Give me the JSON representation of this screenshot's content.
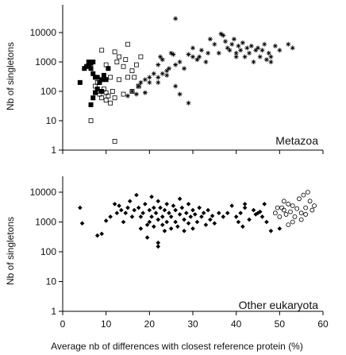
{
  "chart_data": [
    {
      "type": "scatter",
      "panel": "top",
      "annotation": "Metazoa",
      "ylabel": "Nb of singletons",
      "xlabel": "",
      "xlim": [
        0,
        60
      ],
      "ylim": [
        1,
        40000
      ],
      "yscale": "log",
      "yticks": [
        "10000",
        "1000",
        "100",
        "10",
        "1"
      ],
      "legend": "none",
      "grid": false,
      "series": [
        {
          "marker": "filled-square",
          "points": [
            [
              4,
              200
            ],
            [
              5,
              600
            ],
            [
              5.5,
              700
            ],
            [
              6,
              800
            ],
            [
              6,
              1000
            ],
            [
              6.5,
              900
            ],
            [
              7,
              1000
            ],
            [
              6.5,
              600
            ],
            [
              7,
              400
            ],
            [
              7.5,
              300
            ],
            [
              8,
              300
            ],
            [
              6.5,
              35
            ],
            [
              7,
              60
            ],
            [
              8.5,
              200
            ],
            [
              9,
              250
            ],
            [
              9.5,
              350
            ],
            [
              10,
              250
            ],
            [
              8,
              120
            ],
            [
              7.5,
              90
            ],
            [
              9,
              100
            ],
            [
              10.5,
              600
            ]
          ]
        },
        {
          "marker": "open-square",
          "points": [
            [
              6.5,
              10
            ],
            [
              7.5,
              150
            ],
            [
              8,
              200
            ],
            [
              8,
              100
            ],
            [
              8.5,
              80
            ],
            [
              9,
              60
            ],
            [
              9.5,
              120
            ],
            [
              10,
              90
            ],
            [
              10,
              50
            ],
            [
              10.5,
              70
            ],
            [
              11,
              40
            ],
            [
              11.5,
              100
            ],
            [
              12,
              60
            ],
            [
              12,
              2
            ],
            [
              9,
              2500
            ],
            [
              12,
              2200
            ],
            [
              13,
              1500
            ],
            [
              12.5,
              1000
            ],
            [
              14,
              700
            ],
            [
              14.5,
              1200
            ],
            [
              15,
              300
            ],
            [
              15,
              4000
            ],
            [
              16,
              500
            ],
            [
              16.5,
              300
            ],
            [
              17,
              800
            ],
            [
              18,
              1500
            ],
            [
              16,
              100
            ],
            [
              14,
              80
            ],
            [
              13,
              250
            ],
            [
              11,
              300
            ],
            [
              17.5,
              150
            ],
            [
              10,
              800
            ]
          ]
        },
        {
          "marker": "asterisk",
          "points": [
            [
              15,
              70
            ],
            [
              16,
              100
            ],
            [
              17,
              80
            ],
            [
              17.5,
              150
            ],
            [
              18,
              200
            ],
            [
              19,
              250
            ],
            [
              19,
              90
            ],
            [
              20,
              300
            ],
            [
              20,
              200
            ],
            [
              21,
              400
            ],
            [
              22,
              800
            ],
            [
              22,
              300
            ],
            [
              23,
              400
            ],
            [
              24,
              350
            ],
            [
              24.5,
              600
            ],
            [
              22.5,
              1500
            ],
            [
              23,
              1200
            ],
            [
              25,
              2000
            ],
            [
              25.5,
              1800
            ],
            [
              26,
              800
            ],
            [
              27,
              1000
            ],
            [
              28,
              600
            ],
            [
              29,
              1800
            ],
            [
              30,
              1500
            ],
            [
              31,
              1200
            ],
            [
              31.5,
              1500
            ],
            [
              29,
              40
            ],
            [
              26,
              30000
            ],
            [
              27,
              80
            ],
            [
              26,
              150
            ],
            [
              30,
              3000
            ],
            [
              32,
              2500
            ],
            [
              33,
              1000
            ],
            [
              33.5,
              2000
            ],
            [
              34,
              6000
            ],
            [
              35,
              4000
            ],
            [
              36,
              2000
            ],
            [
              36.5,
              9000
            ],
            [
              37,
              8000
            ],
            [
              37.5,
              5000
            ],
            [
              38,
              3000
            ],
            [
              38.5,
              2500
            ],
            [
              39,
              4000
            ],
            [
              39.5,
              6000
            ],
            [
              40,
              2000
            ],
            [
              40,
              1500
            ],
            [
              40.5,
              3500
            ],
            [
              41,
              2500
            ],
            [
              41.5,
              4500
            ],
            [
              42,
              1500
            ],
            [
              42.5,
              3000
            ],
            [
              43,
              2000
            ],
            [
              43.5,
              3500
            ],
            [
              44,
              1000
            ],
            [
              44.5,
              2500
            ],
            [
              45,
              3000
            ],
            [
              45.5,
              1500
            ],
            [
              46,
              2500
            ],
            [
              46.5,
              4000
            ],
            [
              47,
              1200
            ],
            [
              47.5,
              2000
            ],
            [
              48,
              1500
            ],
            [
              49,
              3500
            ],
            [
              50,
              2500
            ],
            [
              48,
              1000
            ],
            [
              52,
              4000
            ],
            [
              53,
              3000
            ],
            [
              22,
              200
            ],
            [
              24,
              500
            ]
          ]
        }
      ]
    },
    {
      "type": "scatter",
      "panel": "bottom",
      "annotation": "Other eukaryota",
      "ylabel": "Nb of singletons",
      "xlabel": "Average nb of differences with closest reference protein (%)",
      "xlim": [
        0,
        60
      ],
      "ylim": [
        1,
        40000
      ],
      "yscale": "log",
      "yticks": [
        "10000",
        "1000",
        "100",
        "10",
        "1"
      ],
      "xticks": [
        "0",
        "10",
        "20",
        "30",
        "40",
        "50",
        "60"
      ],
      "legend": "none",
      "grid": false,
      "series": [
        {
          "marker": "filled-diamond",
          "points": [
            [
              4,
              3000
            ],
            [
              4.5,
              900
            ],
            [
              8,
              350
            ],
            [
              9,
              400
            ],
            [
              10,
              1100
            ],
            [
              11,
              1500
            ],
            [
              12,
              4000
            ],
            [
              12.5,
              2000
            ],
            [
              13,
              3500
            ],
            [
              13.5,
              2500
            ],
            [
              14,
              1000
            ],
            [
              14.5,
              2000
            ],
            [
              15,
              3000
            ],
            [
              15.5,
              5000
            ],
            [
              16,
              1500
            ],
            [
              16.5,
              2500
            ],
            [
              17,
              8000
            ],
            [
              17.5,
              3000
            ],
            [
              18,
              1500
            ],
            [
              18,
              600
            ],
            [
              18.5,
              2000
            ],
            [
              19,
              4000
            ],
            [
              19.5,
              800
            ],
            [
              19.5,
              300
            ],
            [
              20,
              2500
            ],
            [
              20,
              1000
            ],
            [
              20.5,
              1500
            ],
            [
              21,
              3000
            ],
            [
              21,
              700
            ],
            [
              21.5,
              2000
            ],
            [
              22,
              5000
            ],
            [
              22,
              1200
            ],
            [
              22,
              200
            ],
            [
              22,
              150
            ],
            [
              22.5,
              3000
            ],
            [
              23,
              1500
            ],
            [
              23,
              800
            ],
            [
              23.5,
              2500
            ],
            [
              24,
              4000
            ],
            [
              24,
              1000
            ],
            [
              24.5,
              2000
            ],
            [
              25,
              600
            ],
            [
              25,
              1500
            ],
            [
              25.5,
              3500
            ],
            [
              26,
              1000
            ],
            [
              26,
              2500
            ],
            [
              26.5,
              700
            ],
            [
              27,
              1800
            ],
            [
              27.5,
              3000
            ],
            [
              28,
              1200
            ],
            [
              28,
              500
            ],
            [
              28.5,
              2000
            ],
            [
              29,
              4000
            ],
            [
              29,
              900
            ],
            [
              29.5,
              1500
            ],
            [
              30,
              2500
            ],
            [
              30,
              600
            ],
            [
              30.5,
              1800
            ],
            [
              31,
              1000
            ],
            [
              31.5,
              3000
            ],
            [
              32,
              1500
            ],
            [
              32.5,
              2000
            ],
            [
              33,
              800
            ],
            [
              33.5,
              2500
            ],
            [
              34,
              1200
            ],
            [
              34.5,
              1600
            ],
            [
              35,
              900
            ],
            [
              36,
              2000
            ],
            [
              37,
              1500
            ],
            [
              38,
              2000
            ],
            [
              39,
              3500
            ],
            [
              40,
              1500
            ],
            [
              40.5,
              1000
            ],
            [
              41,
              2000
            ],
            [
              42,
              3000
            ],
            [
              42,
              4000
            ],
            [
              43,
              1200
            ],
            [
              44,
              2500
            ],
            [
              44.5,
              1800
            ],
            [
              45,
              2000
            ],
            [
              46,
              1500
            ],
            [
              46.5,
              4000
            ],
            [
              47,
              1000
            ],
            [
              48,
              500
            ],
            [
              50,
              600
            ],
            [
              41.5,
              700
            ],
            [
              45.5,
              2200
            ],
            [
              20.5,
              7000
            ],
            [
              27,
              6000
            ],
            [
              23.5,
              500
            ]
          ]
        },
        {
          "marker": "open-circle",
          "points": [
            [
              49,
              2000
            ],
            [
              50,
              1500
            ],
            [
              50.5,
              3000
            ],
            [
              51,
              2500
            ],
            [
              51.5,
              1800
            ],
            [
              52,
              4000
            ],
            [
              52.5,
              2200
            ],
            [
              53,
              3500
            ],
            [
              53.5,
              1500
            ],
            [
              54,
              2800
            ],
            [
              54.5,
              6000
            ],
            [
              55,
              2000
            ],
            [
              55.5,
              8000
            ],
            [
              56,
              3000
            ],
            [
              56.5,
              10000
            ],
            [
              57,
              5000
            ],
            [
              57.5,
              2500
            ],
            [
              58,
              3500
            ],
            [
              52,
              800
            ],
            [
              53,
              1000
            ],
            [
              55,
              1200
            ],
            [
              49.5,
              3000
            ],
            [
              51,
              5000
            ],
            [
              56,
              1800
            ]
          ]
        }
      ]
    }
  ]
}
